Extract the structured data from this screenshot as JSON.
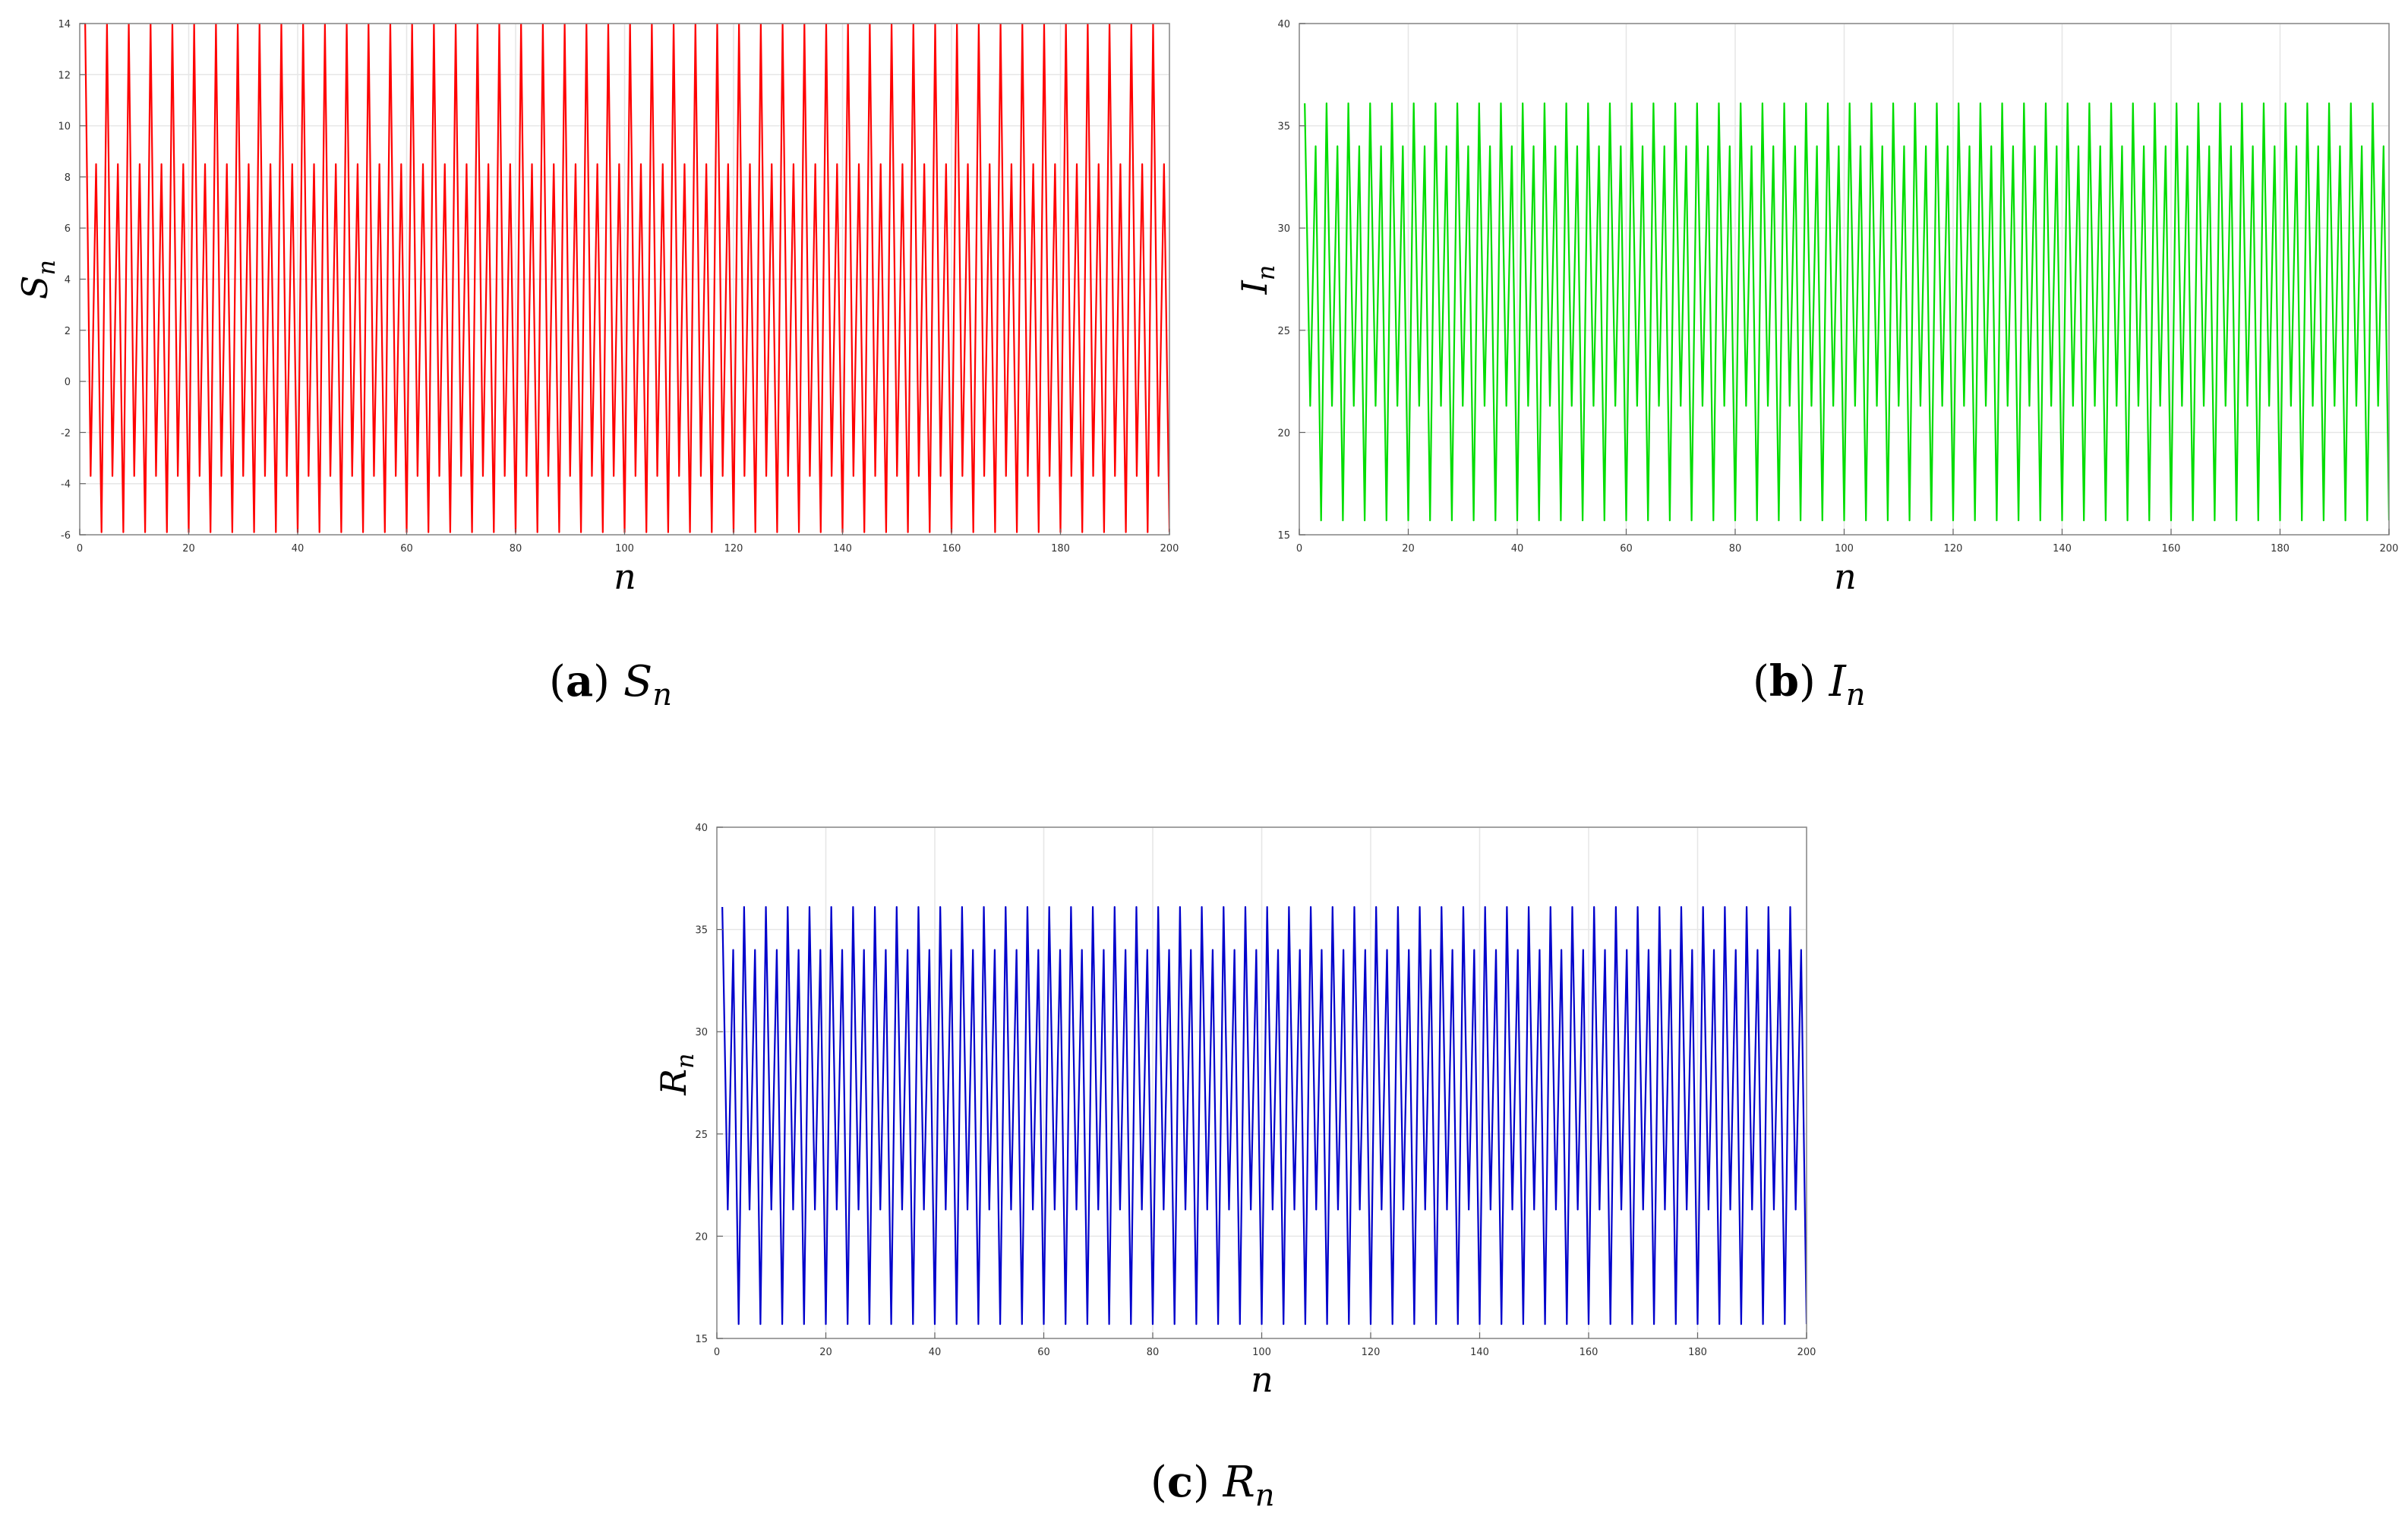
{
  "chart_data": [
    {
      "id": "S",
      "type": "line",
      "title": "",
      "xlabel": "n",
      "ylabel": {
        "main": "S",
        "sub": "n"
      },
      "caption": {
        "tag": "a",
        "var": "S",
        "sub": "n"
      },
      "color": "#ff0000",
      "xlim": [
        0,
        200
      ],
      "ylim": [
        -6,
        14
      ],
      "xticks": [
        0,
        20,
        40,
        60,
        80,
        100,
        120,
        140,
        160,
        180,
        200
      ],
      "yticks": [
        -6,
        -4,
        -2,
        0,
        2,
        4,
        6,
        8,
        10,
        12,
        14
      ],
      "grid": true,
      "period": 4,
      "cycle_values": [
        14.0,
        -3.7,
        8.5,
        -5.9
      ],
      "n_points": 200,
      "series": [
        {
          "values": []
        }
      ]
    },
    {
      "id": "I",
      "type": "line",
      "title": "",
      "xlabel": "n",
      "ylabel": {
        "main": "I",
        "sub": "n"
      },
      "caption": {
        "tag": "b",
        "var": "I",
        "sub": "n"
      },
      "color": "#00dd00",
      "xlim": [
        0,
        200
      ],
      "ylim": [
        15,
        40
      ],
      "xticks": [
        0,
        20,
        40,
        60,
        80,
        100,
        120,
        140,
        160,
        180,
        200
      ],
      "yticks": [
        15,
        20,
        25,
        30,
        35,
        40
      ],
      "grid": true,
      "period": 4,
      "cycle_values": [
        36.1,
        21.3,
        34.0,
        15.7
      ],
      "n_points": 200,
      "series": [
        {
          "values": []
        }
      ]
    },
    {
      "id": "R",
      "type": "line",
      "title": "",
      "xlabel": "n",
      "ylabel": {
        "main": "R",
        "sub": "n"
      },
      "caption": {
        "tag": "c",
        "var": "R",
        "sub": "n"
      },
      "color": "#0000cc",
      "xlim": [
        0,
        200
      ],
      "ylim": [
        15,
        40
      ],
      "xticks": [
        0,
        20,
        40,
        60,
        80,
        100,
        120,
        140,
        160,
        180,
        200
      ],
      "yticks": [
        15,
        20,
        25,
        30,
        35,
        40
      ],
      "grid": true,
      "period": 4,
      "cycle_values": [
        36.1,
        21.3,
        34.0,
        15.7
      ],
      "n_points": 200,
      "series": [
        {
          "values": []
        }
      ]
    }
  ]
}
